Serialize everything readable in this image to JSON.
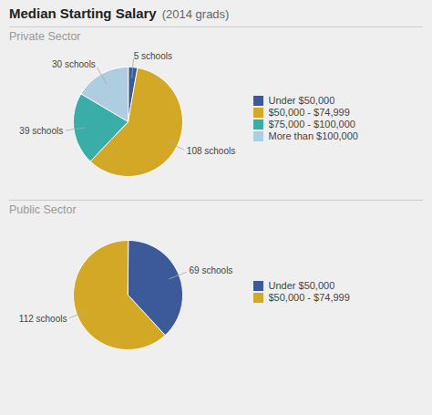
{
  "title": "Median Starting Salary",
  "subtitle": "(2014 grads)",
  "chart_data": [
    {
      "type": "pie",
      "title": "Private Sector",
      "categories": [
        "Under $50,000",
        "$50,000 - $74,999",
        "$75,000 - $100,000",
        "More than $100,000"
      ],
      "values": [
        5,
        108,
        39,
        30
      ],
      "value_labels": [
        "5 schools",
        "108 schools",
        "39 schools",
        "30 schools"
      ],
      "colors": [
        "#3c5a99",
        "#d4a827",
        "#3aada8",
        "#aecde0"
      ],
      "data_labels": true,
      "legend": "right"
    },
    {
      "type": "pie",
      "title": "Public Sector",
      "categories": [
        "Under $50,000",
        "$50,000 - $74,999"
      ],
      "values": [
        69,
        112
      ],
      "value_labels": [
        "69 schools",
        "112 schools"
      ],
      "colors": [
        "#3c5a99",
        "#d4a827"
      ],
      "data_labels": true,
      "legend": "right"
    }
  ]
}
